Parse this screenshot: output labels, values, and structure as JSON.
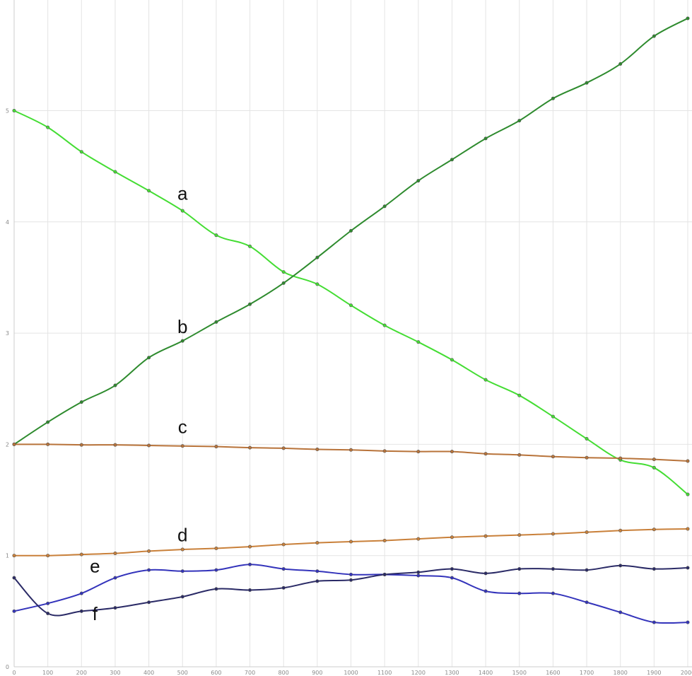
{
  "chart_data": {
    "type": "line",
    "xlim": [
      0,
      2000
    ],
    "ylim": [
      0,
      6
    ],
    "grid": true,
    "x_ticks": [
      0,
      100,
      200,
      300,
      400,
      500,
      600,
      700,
      800,
      900,
      1000,
      1100,
      1200,
      1300,
      1400,
      1500,
      1600,
      1700,
      1800,
      1900,
      2000
    ],
    "x_tick_labels": [
      "0",
      "100",
      "200",
      "300",
      "400",
      "500",
      "600",
      "700",
      "800",
      "900",
      "1000",
      "1100",
      "1200",
      "1300",
      "1400",
      "1500",
      "1600",
      "1700",
      "1800",
      "1900",
      "2000"
    ],
    "y_ticks": [
      0,
      1,
      2,
      3,
      4,
      5
    ],
    "y_tick_labels": [
      "0",
      "1",
      "2",
      "3",
      "4",
      "5"
    ],
    "x": [
      0,
      100,
      200,
      300,
      400,
      500,
      600,
      700,
      800,
      900,
      1000,
      1100,
      1200,
      1300,
      1400,
      1500,
      1600,
      1700,
      1800,
      1900,
      2000
    ],
    "series": [
      {
        "name": "a",
        "color": "#44dd33",
        "label_at": [
          500,
          4.2
        ],
        "values": [
          5.0,
          4.85,
          4.63,
          4.45,
          4.28,
          4.1,
          3.88,
          3.78,
          3.55,
          3.44,
          3.25,
          3.07,
          2.92,
          2.76,
          2.58,
          2.44,
          2.25,
          2.05,
          1.86,
          1.79,
          1.55
        ]
      },
      {
        "name": "b",
        "color": "#2e8b2e",
        "label_at": [
          500,
          3.0
        ],
        "values": [
          2.0,
          2.2,
          2.38,
          2.53,
          2.78,
          2.93,
          3.1,
          3.26,
          3.45,
          3.68,
          3.92,
          4.14,
          4.37,
          4.56,
          4.75,
          4.91,
          5.11,
          5.25,
          5.42,
          5.67,
          5.83
        ]
      },
      {
        "name": "c",
        "color": "#b8733a",
        "label_at": [
          500,
          2.1
        ],
        "values": [
          2.0,
          2.0,
          1.995,
          1.995,
          1.99,
          1.985,
          1.98,
          1.97,
          1.965,
          1.955,
          1.95,
          1.94,
          1.935,
          1.935,
          1.915,
          1.905,
          1.89,
          1.88,
          1.875,
          1.865,
          1.85
        ]
      },
      {
        "name": "d",
        "color": "#c9803a",
        "label_at": [
          500,
          1.13
        ],
        "values": [
          1.0,
          1.0,
          1.01,
          1.02,
          1.04,
          1.055,
          1.065,
          1.08,
          1.1,
          1.115,
          1.125,
          1.135,
          1.15,
          1.165,
          1.175,
          1.185,
          1.195,
          1.21,
          1.225,
          1.235,
          1.24
        ]
      },
      {
        "name": "e",
        "color": "#3333bb",
        "label_at": [
          240,
          0.85
        ],
        "values": [
          0.5,
          0.57,
          0.66,
          0.8,
          0.87,
          0.86,
          0.87,
          0.92,
          0.88,
          0.86,
          0.83,
          0.83,
          0.82,
          0.8,
          0.68,
          0.66,
          0.66,
          0.58,
          0.49,
          0.4,
          0.4
        ]
      },
      {
        "name": "f",
        "color": "#2a2a66",
        "label_at": [
          240,
          0.42
        ],
        "values": [
          0.8,
          0.48,
          0.5,
          0.53,
          0.58,
          0.63,
          0.7,
          0.69,
          0.71,
          0.77,
          0.78,
          0.83,
          0.85,
          0.88,
          0.84,
          0.88,
          0.88,
          0.87,
          0.91,
          0.88,
          0.89
        ]
      }
    ]
  }
}
